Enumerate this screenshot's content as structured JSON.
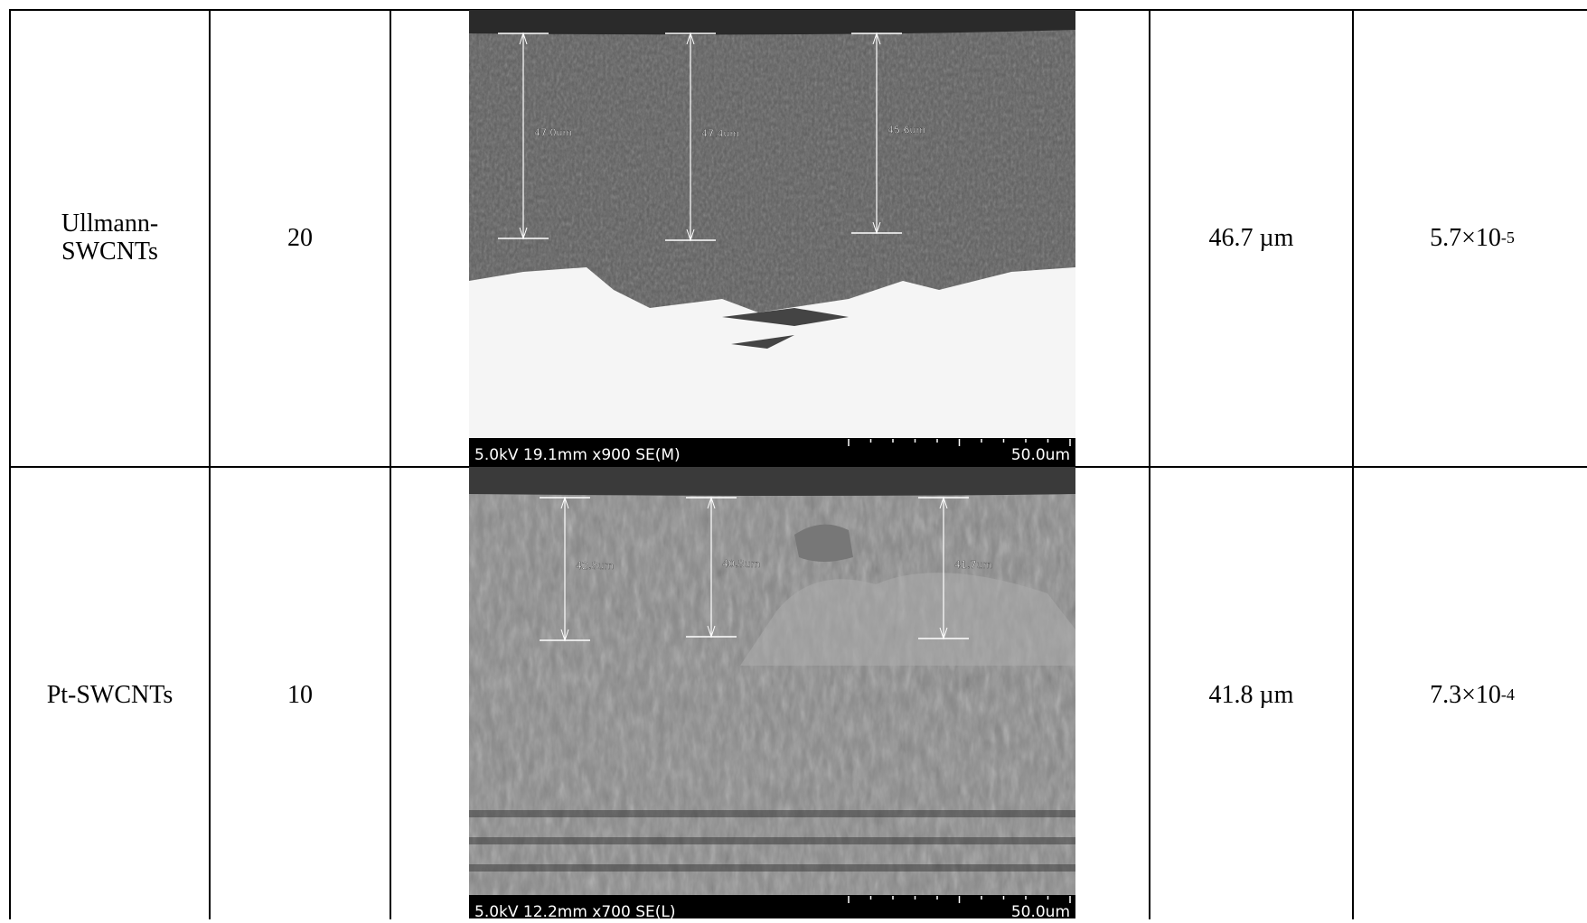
{
  "table": {
    "rows": [
      {
        "material": [
          "Ullmann-",
          "SWCNTs"
        ],
        "loading": "20",
        "image": {
          "measurements": [
            "47.0um",
            "47.4um",
            "45.6um"
          ],
          "info": "5.0kV 19.1mm x900 SE(M)",
          "scale": "50.0um"
        },
        "thickness": "46.7 µm",
        "value": {
          "base": "5.7×10",
          "exponent": "-5"
        }
      },
      {
        "material": [
          "Pt-SWCNTs"
        ],
        "loading": "10",
        "image": {
          "measurements": [
            "42.8um",
            "40.8um",
            "41.7um"
          ],
          "info": "5.0kV 12.2mm x700 SE(L)",
          "scale": "50.0um"
        },
        "thickness": "41.8 µm",
        "value": {
          "base": "7.3×10",
          "exponent": "-4"
        }
      }
    ]
  }
}
